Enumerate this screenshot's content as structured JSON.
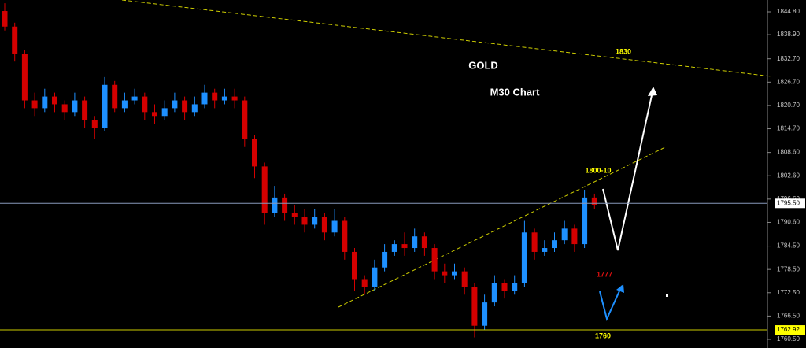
{
  "chart_data": {
    "type": "candlestick",
    "title": "GOLD",
    "subtitle": "M30 Chart",
    "up_color": "#1e90ff",
    "down_color": "#d40000",
    "open": [
      1845,
      1841,
      1834,
      1822,
      1820,
      1823,
      1821,
      1819,
      1822,
      1817,
      1815,
      1826,
      1820,
      1822,
      1823,
      1819,
      1818,
      1820,
      1822,
      1819,
      1821,
      1824,
      1822,
      1823,
      1822,
      1812,
      1805,
      1793,
      1797,
      1793,
      1792,
      1790,
      1792,
      1788,
      1791,
      1783,
      1776,
      1774,
      1779,
      1783,
      1785,
      1784,
      1787,
      1784,
      1778,
      1777,
      1778,
      1774,
      1764,
      1770,
      1775,
      1773,
      1775,
      1788,
      1783,
      1784,
      1786,
      1789,
      1785,
      1797
    ],
    "high": [
      1847,
      1842,
      1835,
      1824,
      1825,
      1824,
      1822,
      1824,
      1823,
      1818,
      1828,
      1827,
      1824,
      1825,
      1824,
      1821,
      1822,
      1824,
      1823,
      1823,
      1826,
      1825,
      1825,
      1825,
      1823,
      1813,
      1806,
      1800,
      1798,
      1795,
      1794,
      1794,
      1793,
      1794,
      1792,
      1784,
      1777,
      1781,
      1785,
      1786,
      1788,
      1789,
      1788,
      1785,
      1780,
      1780,
      1779,
      1775,
      1772,
      1777,
      1776,
      1777,
      1791,
      1789,
      1786,
      1788,
      1791,
      1790,
      1799,
      1798
    ],
    "low": [
      1840,
      1832,
      1820,
      1818,
      1819,
      1819,
      1817,
      1818,
      1815,
      1812,
      1814,
      1819,
      1819,
      1821,
      1817,
      1816,
      1817,
      1819,
      1817,
      1818,
      1820,
      1820,
      1821,
      1820,
      1810,
      1802,
      1790,
      1792,
      1791,
      1790,
      1788,
      1789,
      1786,
      1787,
      1781,
      1773,
      1772,
      1773,
      1778,
      1782,
      1782,
      1783,
      1782,
      1776,
      1775,
      1776,
      1772,
      1761,
      1763,
      1769,
      1771,
      1772,
      1774,
      1781,
      1782,
      1783,
      1785,
      1783,
      1784,
      1794
    ],
    "close": [
      1841,
      1834,
      1822,
      1820,
      1823,
      1821,
      1819,
      1822,
      1817,
      1815,
      1826,
      1820,
      1822,
      1823,
      1819,
      1818,
      1820,
      1822,
      1819,
      1821,
      1824,
      1822,
      1823,
      1822,
      1812,
      1805,
      1793,
      1797,
      1793,
      1792,
      1790,
      1792,
      1788,
      1791,
      1783,
      1776,
      1774,
      1779,
      1783,
      1785,
      1784,
      1787,
      1784,
      1778,
      1777,
      1778,
      1774,
      1764,
      1770,
      1775,
      1773,
      1775,
      1788,
      1783,
      1784,
      1786,
      1789,
      1785,
      1797,
      1795
    ],
    "ylim": [
      1758.27,
      1847.84
    ],
    "yticks": [
      {
        "value": 1844.8,
        "label": "1844.80"
      },
      {
        "value": 1838.9,
        "label": "1838.90"
      },
      {
        "value": 1832.7,
        "label": "1832.70"
      },
      {
        "value": 1826.7,
        "label": "1826.70"
      },
      {
        "value": 1820.7,
        "label": "1820.70"
      },
      {
        "value": 1814.7,
        "label": "1814.70"
      },
      {
        "value": 1808.6,
        "label": "1808.60"
      },
      {
        "value": 1802.6,
        "label": "1802.60"
      },
      {
        "value": 1796.6,
        "label": "1796.60"
      },
      {
        "value": 1790.6,
        "label": "1790.60"
      },
      {
        "value": 1784.5,
        "label": "1784.50"
      },
      {
        "value": 1778.5,
        "label": "1778.50"
      },
      {
        "value": 1772.5,
        "label": "1772.50"
      },
      {
        "value": 1766.5,
        "label": "1766.50"
      },
      {
        "value": 1760.5,
        "label": "1760.50"
      }
    ],
    "levels": [
      {
        "value": 1795.5,
        "label": "1795.50",
        "color": "#8899bb",
        "box": "#ffffff"
      },
      {
        "value": 1762.92,
        "label": "1762.92",
        "color": "#cccc00",
        "box": "#ffff00"
      }
    ],
    "annotations": [
      "1830",
      "1800-10",
      "1777",
      "1760"
    ]
  }
}
